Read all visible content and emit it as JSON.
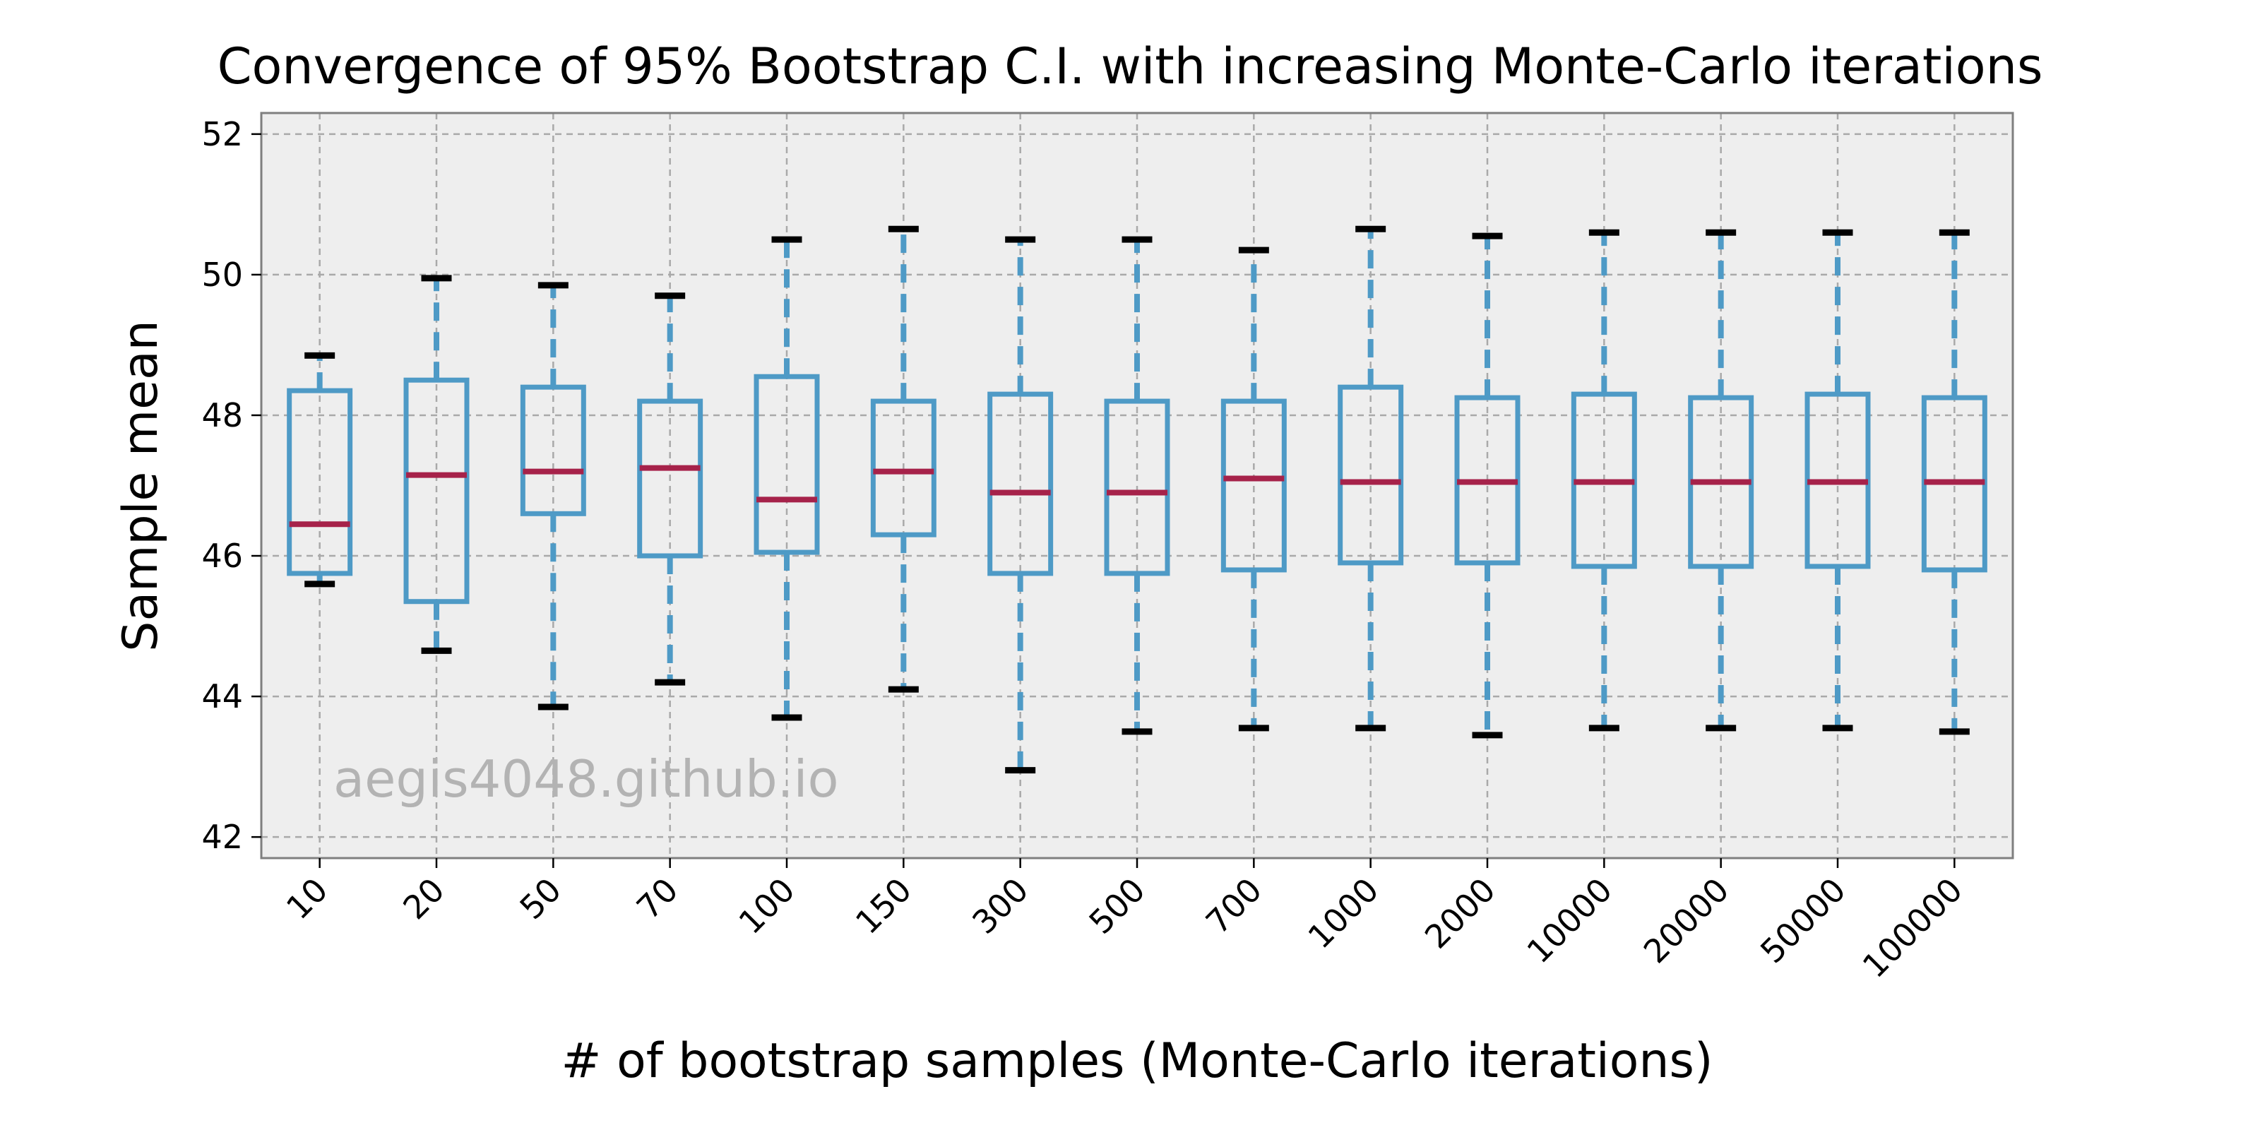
{
  "chart_data": {
    "type": "box",
    "title": "Convergence of 95% Bootstrap C.I. with increasing Monte-Carlo iterations",
    "xlabel": "# of bootstrap samples (Monte-Carlo iterations)",
    "ylabel": "Sample mean",
    "watermark": "aegis4048.github.io",
    "ylim": [
      41.7,
      52.3
    ],
    "yticks": [
      42,
      44,
      46,
      48,
      50,
      52
    ],
    "grid": true,
    "categories": [
      "10",
      "20",
      "50",
      "70",
      "100",
      "150",
      "300",
      "500",
      "700",
      "1000",
      "2000",
      "10000",
      "20000",
      "50000",
      "100000"
    ],
    "boxes": [
      {
        "whisker_low": 45.6,
        "q1": 45.75,
        "median": 46.45,
        "q3": 48.35,
        "whisker_high": 48.85
      },
      {
        "whisker_low": 44.65,
        "q1": 45.35,
        "median": 47.15,
        "q3": 48.5,
        "whisker_high": 49.95
      },
      {
        "whisker_low": 43.85,
        "q1": 46.6,
        "median": 47.2,
        "q3": 48.4,
        "whisker_high": 49.85
      },
      {
        "whisker_low": 44.2,
        "q1": 46.0,
        "median": 47.25,
        "q3": 48.2,
        "whisker_high": 49.7
      },
      {
        "whisker_low": 43.7,
        "q1": 46.05,
        "median": 46.8,
        "q3": 48.55,
        "whisker_high": 50.5
      },
      {
        "whisker_low": 44.1,
        "q1": 46.3,
        "median": 47.2,
        "q3": 48.2,
        "whisker_high": 50.65
      },
      {
        "whisker_low": 42.95,
        "q1": 45.75,
        "median": 46.9,
        "q3": 48.3,
        "whisker_high": 50.5
      },
      {
        "whisker_low": 43.5,
        "q1": 45.75,
        "median": 46.9,
        "q3": 48.2,
        "whisker_high": 50.5
      },
      {
        "whisker_low": 43.55,
        "q1": 45.8,
        "median": 47.1,
        "q3": 48.2,
        "whisker_high": 50.35
      },
      {
        "whisker_low": 43.55,
        "q1": 45.9,
        "median": 47.05,
        "q3": 48.4,
        "whisker_high": 50.65
      },
      {
        "whisker_low": 43.45,
        "q1": 45.9,
        "median": 47.05,
        "q3": 48.25,
        "whisker_high": 50.55
      },
      {
        "whisker_low": 43.55,
        "q1": 45.85,
        "median": 47.05,
        "q3": 48.3,
        "whisker_high": 50.6
      },
      {
        "whisker_low": 43.55,
        "q1": 45.85,
        "median": 47.05,
        "q3": 48.25,
        "whisker_high": 50.6
      },
      {
        "whisker_low": 43.55,
        "q1": 45.85,
        "median": 47.05,
        "q3": 48.3,
        "whisker_high": 50.6
      },
      {
        "whisker_low": 43.5,
        "q1": 45.8,
        "median": 47.05,
        "q3": 48.25,
        "whisker_high": 50.6
      }
    ],
    "colors": {
      "box": "#4e9ac6",
      "median": "#a6224a",
      "cap": "#000000",
      "plot_background": "#eeeeee",
      "grid": "#a9a9a9",
      "frame": "#7f7f7f"
    }
  }
}
